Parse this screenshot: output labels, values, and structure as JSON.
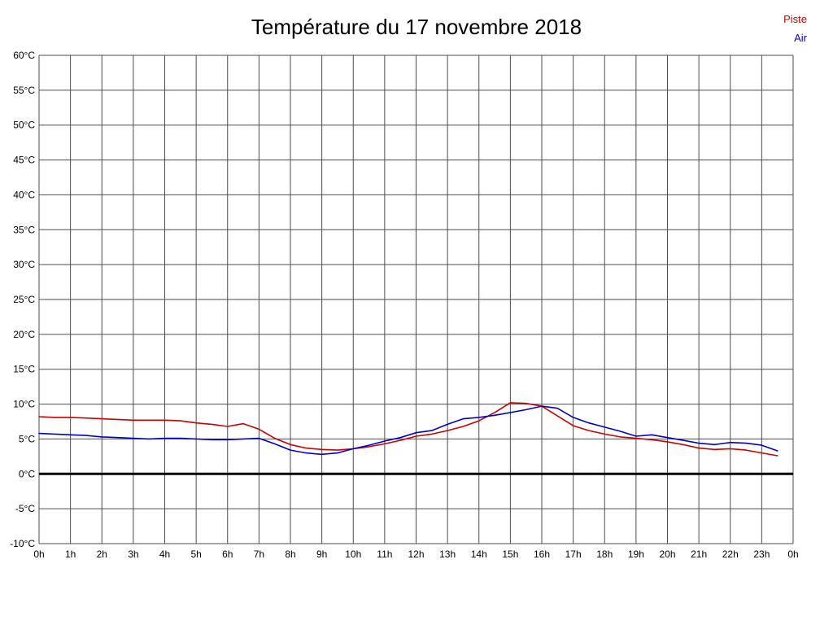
{
  "title": "Température du 17 novembre 2018",
  "legend": [
    {
      "label": "Piste",
      "color": "#cc0000"
    },
    {
      "label": "Air",
      "color": "#0000cc"
    }
  ],
  "chart_data": {
    "type": "line",
    "title": "Température du 17 novembre 2018",
    "xlabel": "",
    "ylabel": "",
    "grid": true,
    "legend_position": "top-right",
    "xlim": [
      0,
      24
    ],
    "ylim": [
      -10,
      60
    ],
    "x_tick_positions": [
      0,
      1,
      2,
      3,
      4,
      5,
      6,
      7,
      8,
      9,
      10,
      11,
      12,
      13,
      14,
      15,
      16,
      17,
      18,
      19,
      20,
      21,
      22,
      23,
      24
    ],
    "x_ticks": [
      "0h",
      "1h",
      "2h",
      "3h",
      "4h",
      "5h",
      "6h",
      "7h",
      "8h",
      "9h",
      "10h",
      "11h",
      "12h",
      "13h",
      "14h",
      "15h",
      "16h",
      "17h",
      "18h",
      "19h",
      "20h",
      "21h",
      "22h",
      "23h",
      "0h"
    ],
    "y_tick_values": [
      60,
      55,
      50,
      45,
      40,
      35,
      30,
      25,
      20,
      15,
      10,
      5,
      0,
      -5,
      -10
    ],
    "y_ticks": [
      "60°C",
      "55°C",
      "50°C",
      "45°C",
      "40°C",
      "35°C",
      "30°C",
      "25°C",
      "20°C",
      "15°C",
      "10°C",
      "5°C",
      "0°C",
      "-5°C",
      "-10°C"
    ],
    "zero_line": {
      "value": 0,
      "color": "#000000",
      "width": 3
    },
    "grid_color": "#4d4d4d",
    "x": [
      0,
      0.5,
      1,
      1.5,
      2,
      2.5,
      3,
      3.5,
      4,
      4.5,
      5,
      5.5,
      6,
      6.5,
      7,
      7.5,
      8,
      8.5,
      9,
      9.5,
      10,
      10.5,
      11,
      11.5,
      12,
      12.5,
      13,
      13.5,
      14,
      14.5,
      15,
      15.5,
      16,
      16.5,
      17,
      17.5,
      18,
      18.5,
      19,
      19.5,
      20,
      20.5,
      21,
      21.5,
      22,
      22.5,
      23,
      23.5
    ],
    "series": [
      {
        "name": "Piste",
        "color": "#cc0000",
        "values": [
          8.2,
          8.1,
          8.1,
          8.0,
          7.9,
          7.8,
          7.7,
          7.7,
          7.7,
          7.6,
          7.3,
          7.1,
          6.8,
          7.2,
          6.4,
          5.1,
          4.2,
          3.7,
          3.5,
          3.4,
          3.6,
          3.9,
          4.3,
          4.8,
          5.4,
          5.7,
          6.2,
          6.8,
          7.6,
          8.8,
          10.2,
          10.1,
          9.7,
          8.3,
          6.9,
          6.2,
          5.7,
          5.3,
          5.1,
          4.9,
          4.6,
          4.2,
          3.7,
          3.5,
          3.6,
          3.4,
          3.0,
          2.6
        ]
      },
      {
        "name": "Air",
        "color": "#0000cc",
        "values": [
          5.8,
          5.7,
          5.6,
          5.5,
          5.3,
          5.2,
          5.1,
          5.0,
          5.1,
          5.1,
          5.0,
          4.9,
          4.9,
          5.0,
          5.1,
          4.3,
          3.4,
          3.0,
          2.8,
          3.0,
          3.6,
          4.1,
          4.7,
          5.2,
          5.9,
          6.2,
          7.1,
          7.9,
          8.1,
          8.4,
          8.8,
          9.2,
          9.7,
          9.4,
          8.1,
          7.3,
          6.7,
          6.1,
          5.4,
          5.6,
          5.2,
          4.8,
          4.4,
          4.2,
          4.5,
          4.4,
          4.1,
          3.3
        ]
      }
    ]
  }
}
